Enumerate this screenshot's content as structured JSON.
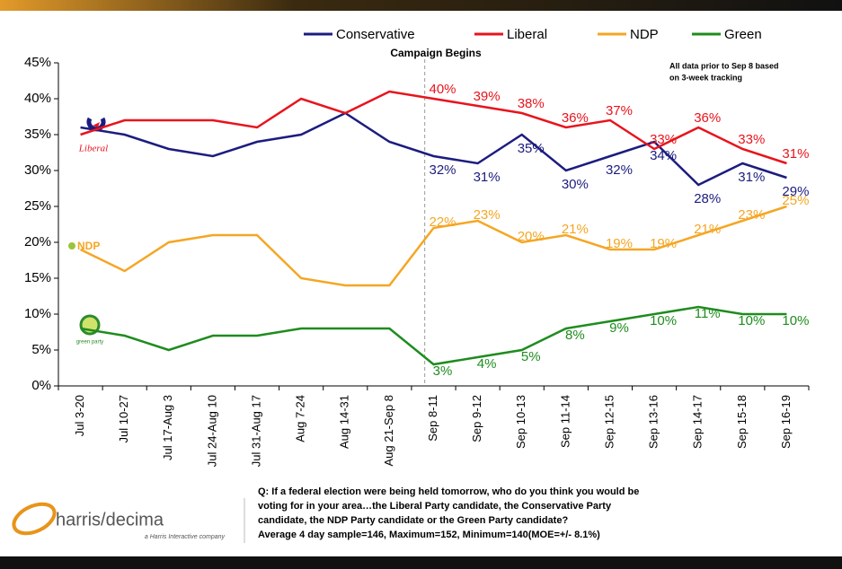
{
  "chart_data": {
    "type": "line",
    "title": "Campaign Begins",
    "note": [
      "All data prior to Sep 8 based",
      "on 3-week tracking"
    ],
    "categories": [
      "Jul 3-20",
      "Jul 10-27",
      "Jul 17-Aug 3",
      "Jul 24-Aug 10",
      "Jul 31-Aug 17",
      "Aug 7-24",
      "Aug 14-31",
      "Aug 21-Sep 8",
      "Sep 8-11",
      "Sep 9-12",
      "Sep 10-13",
      "Sep 11-14",
      "Sep 12-15",
      "Sep 13-16",
      "Sep 14-17",
      "Sep 15-18",
      "Sep 16-19"
    ],
    "series": [
      {
        "name": "Conservative",
        "color": "#1c1c80",
        "values": [
          36,
          35,
          33,
          32,
          34,
          35,
          38,
          34,
          32,
          31,
          35,
          30,
          32,
          34,
          28,
          31,
          29
        ],
        "value_labels": [
          null,
          null,
          null,
          null,
          null,
          null,
          null,
          null,
          "32%",
          "31%",
          "35%",
          "30%",
          "32%",
          "34%",
          "28%",
          "31%",
          "29%"
        ]
      },
      {
        "name": "Liberal",
        "color": "#e8141c",
        "values": [
          35,
          37,
          37,
          37,
          36,
          40,
          38,
          41,
          40,
          39,
          38,
          36,
          37,
          33,
          36,
          33,
          31
        ],
        "value_labels": [
          null,
          null,
          null,
          null,
          null,
          null,
          null,
          null,
          "40%",
          "39%",
          "38%",
          "36%",
          "37%",
          "33%",
          "36%",
          "33%",
          "31%"
        ]
      },
      {
        "name": "NDP",
        "color": "#f5a623",
        "values": [
          19,
          16,
          20,
          21,
          21,
          15,
          14,
          14,
          22,
          23,
          20,
          21,
          19,
          19,
          21,
          23,
          25
        ],
        "value_labels": [
          null,
          null,
          null,
          null,
          null,
          null,
          null,
          null,
          "22%",
          "23%",
          "20%",
          "21%",
          "19%",
          "19%",
          "21%",
          "23%",
          "25%"
        ]
      },
      {
        "name": "Green",
        "color": "#1e8c1e",
        "values": [
          8,
          7,
          5,
          7,
          7,
          8,
          8,
          8,
          3,
          4,
          5,
          8,
          9,
          10,
          11,
          10,
          10
        ],
        "value_labels": [
          null,
          null,
          null,
          null,
          null,
          null,
          null,
          null,
          "3%",
          "4%",
          "5%",
          "8%",
          "9%",
          "10%",
          "11%",
          "10%",
          "10%"
        ]
      }
    ],
    "ylim": [
      0,
      45
    ],
    "yticks": [
      {
        "value": 0,
        "label": "0%"
      },
      {
        "value": 5,
        "label": "5%"
      },
      {
        "value": 10,
        "label": "10%"
      },
      {
        "value": 15,
        "label": "15%"
      },
      {
        "value": 20,
        "label": "20%"
      },
      {
        "value": 25,
        "label": "25%"
      },
      {
        "value": 30,
        "label": "30%"
      },
      {
        "value": 35,
        "label": "35%"
      },
      {
        "value": 40,
        "label": "40%"
      },
      {
        "value": 45,
        "label": "45%"
      }
    ],
    "legend": "top",
    "logos": {
      "liberal": "Liberal",
      "ndp": "NDP",
      "green": "green party"
    }
  },
  "footer": {
    "brand": "harris/decima",
    "tagline": "a Harris Interactive company",
    "question": [
      "Q: If a federal election were being held tomorrow, who do you think you would be",
      "voting for in your area…the Liberal Party candidate, the Conservative Party",
      "candidate, the NDP Party candidate or the Green Party candidate?",
      "Average 4 day sample=146, Maximum=152, Minimum=140(MOE=+/- 8.1%)"
    ]
  }
}
